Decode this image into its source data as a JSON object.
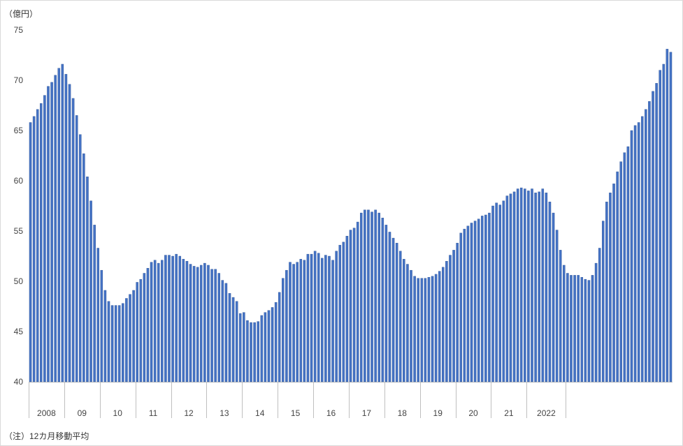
{
  "unit_label": "（億円）",
  "note": "（注）12カ月移動平均",
  "chart_data": {
    "type": "bar",
    "bar_color": "#4472c4",
    "bar_edge": "#2f5597",
    "ylim": [
      40,
      75
    ],
    "yticks": [
      40,
      45,
      50,
      55,
      60,
      65,
      70,
      75
    ],
    "groups": [
      "2008",
      "09",
      "10",
      "11",
      "12",
      "13",
      "14",
      "15",
      "16",
      "17",
      "18",
      "19",
      "20",
      "21",
      "2022"
    ],
    "bars_per_group": [
      10,
      10,
      10,
      10,
      10,
      10,
      10,
      10,
      10,
      10,
      10,
      10,
      10,
      10,
      11
    ],
    "values": [
      65.8,
      66.4,
      67.1,
      67.7,
      68.5,
      69.4,
      69.8,
      70.5,
      71.2,
      71.6,
      70.6,
      69.6,
      68.2,
      66.5,
      64.6,
      62.7,
      60.4,
      58.0,
      55.6,
      53.3,
      51.1,
      49.1,
      48.0,
      47.6,
      47.6,
      47.6,
      47.8,
      48.3,
      48.7,
      49.1,
      49.9,
      50.2,
      50.8,
      51.3,
      51.9,
      52.1,
      51.8,
      52.1,
      52.6,
      52.6,
      52.5,
      52.7,
      52.5,
      52.2,
      52.0,
      51.7,
      51.5,
      51.4,
      51.6,
      51.8,
      51.6,
      51.2,
      51.2,
      50.8,
      50.1,
      49.8,
      48.8,
      48.4,
      48.0,
      46.8,
      46.9,
      46.1,
      45.9,
      45.9,
      46.0,
      46.6,
      46.9,
      47.1,
      47.4,
      47.9,
      48.9,
      50.3,
      51.1,
      51.9,
      51.7,
      51.9,
      52.2,
      52.1,
      52.7,
      52.7,
      53.0,
      52.8,
      52.3,
      52.6,
      52.5,
      52.1,
      53.0,
      53.6,
      53.9,
      54.5,
      55.1,
      55.3,
      55.9,
      56.8,
      57.1,
      57.1,
      56.9,
      57.1,
      56.8,
      56.3,
      55.6,
      54.9,
      54.3,
      53.8,
      53.0,
      52.2,
      51.7,
      51.1,
      50.5,
      50.3,
      50.3,
      50.3,
      50.4,
      50.5,
      50.7,
      51.0,
      51.4,
      52.0,
      52.6,
      53.1,
      53.8,
      54.8,
      55.2,
      55.5,
      55.8,
      56.0,
      56.2,
      56.5,
      56.6,
      56.8,
      57.5,
      57.8,
      57.6,
      58.0,
      58.5,
      58.7,
      58.9,
      59.2,
      59.3,
      59.2,
      59.0,
      59.2,
      58.8,
      58.9,
      59.2,
      58.8,
      57.9,
      56.8,
      55.1,
      53.1,
      51.6,
      50.8,
      50.6,
      50.6,
      50.6,
      50.4,
      50.2,
      50.1,
      50.6,
      51.8,
      53.3,
      56.0,
      57.9,
      58.8,
      59.7,
      60.9,
      61.9,
      62.8,
      63.4,
      65.0,
      65.5,
      65.8,
      66.4,
      67.1,
      67.9,
      68.9,
      69.7,
      71.0,
      71.6,
      73.1,
      72.8
    ]
  }
}
